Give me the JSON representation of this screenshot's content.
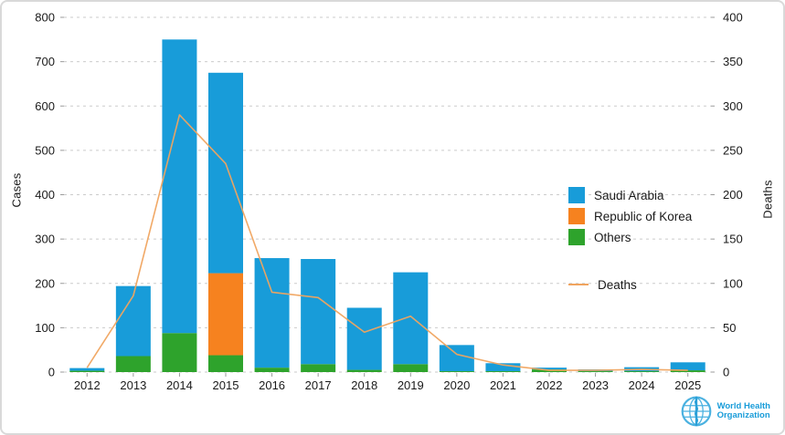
{
  "chart_data": {
    "type": "bar",
    "stacked": true,
    "title": "",
    "categories": [
      "2012",
      "2013",
      "2014",
      "2015",
      "2016",
      "2017",
      "2018",
      "2019",
      "2020",
      "2021",
      "2022",
      "2023",
      "2024",
      "2025"
    ],
    "series": [
      {
        "name": "Saudi Arabia",
        "color": "#189CD9",
        "values": [
          6,
          158,
          662,
          452,
          247,
          237,
          140,
          207,
          59,
          18,
          4,
          4,
          9,
          18
        ]
      },
      {
        "name": "Republic of Korea",
        "color": "#F6821F",
        "values": [
          0,
          0,
          0,
          185,
          0,
          0,
          0,
          0,
          0,
          0,
          0,
          0,
          0,
          0
        ]
      },
      {
        "name": "Others",
        "color": "#2EA32C",
        "values": [
          3,
          36,
          88,
          38,
          10,
          18,
          5,
          18,
          2,
          2,
          6,
          2,
          2,
          4
        ]
      }
    ],
    "stack_order": [
      "Others",
      "Republic of Korea",
      "Saudi Arabia"
    ],
    "line_series": {
      "name": "Deaths",
      "color": "#F0A45F",
      "axis": "right",
      "values": [
        5,
        86,
        290,
        235,
        90,
        84,
        45,
        63,
        20,
        8,
        2,
        2,
        3,
        2
      ]
    },
    "ylabel_left": "Cases",
    "ylabel_right": "Deaths",
    "ylim_left": [
      0,
      800
    ],
    "ylim_right": [
      0,
      400
    ],
    "yticks_left": [
      0,
      100,
      200,
      300,
      400,
      500,
      600,
      700,
      800
    ],
    "yticks_right": [
      0,
      50,
      100,
      150,
      200,
      250,
      300,
      350,
      400
    ],
    "grid": true,
    "legend_position": "right-center",
    "grid_color": "#CBCBCB",
    "tick_color": "#9B9B9B",
    "text_color": "#1a1a1a"
  },
  "branding": {
    "org_line1": "World Health",
    "org_line2": "Organization"
  }
}
